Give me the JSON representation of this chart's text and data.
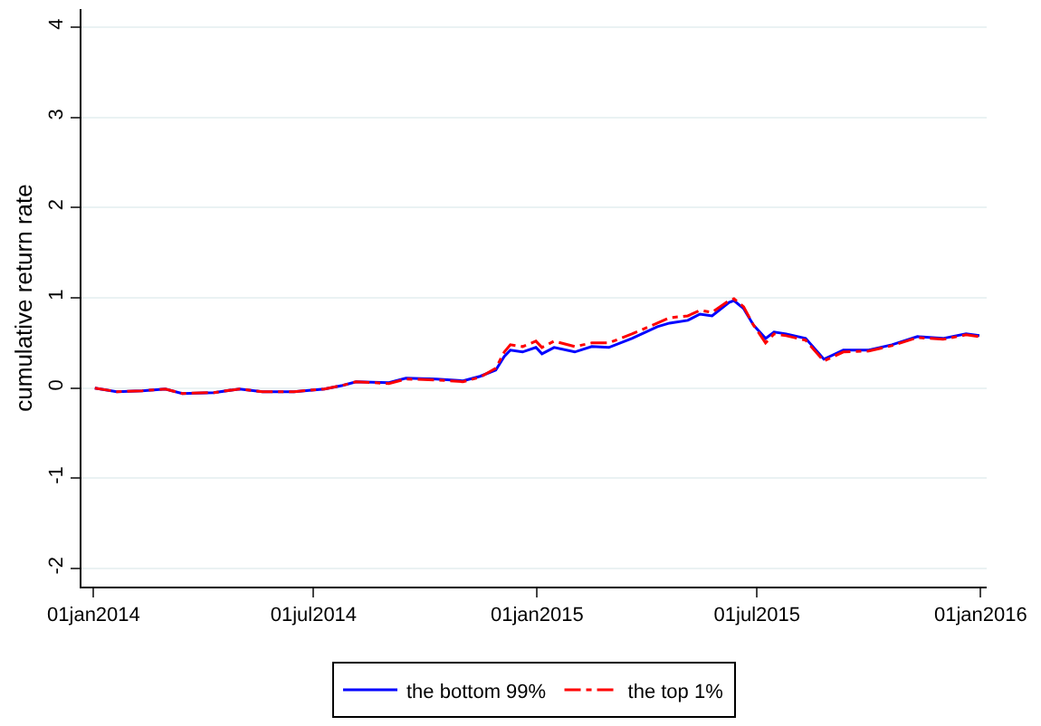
{
  "chart_data": {
    "type": "line",
    "ylabel": "cumulative return rate",
    "x": [
      "2014-01-02",
      "2014-01-20",
      "2014-02-10",
      "2014-03-01",
      "2014-03-15",
      "2014-04-10",
      "2014-05-01",
      "2014-05-20",
      "2014-06-15",
      "2014-07-10",
      "2014-07-25",
      "2014-08-05",
      "2014-09-01",
      "2014-09-15",
      "2014-10-10",
      "2014-11-01",
      "2014-11-15",
      "2014-11-28",
      "2014-12-05",
      "2014-12-10",
      "2014-12-20",
      "2014-12-31",
      "2015-01-05",
      "2015-01-15",
      "2015-02-01",
      "2015-02-15",
      "2015-03-01",
      "2015-03-20",
      "2015-04-10",
      "2015-04-20",
      "2015-05-05",
      "2015-05-15",
      "2015-05-25",
      "2015-06-08",
      "2015-06-12",
      "2015-06-20",
      "2015-06-28",
      "2015-07-08",
      "2015-07-15",
      "2015-07-25",
      "2015-08-10",
      "2015-08-25",
      "2015-09-10",
      "2015-10-01",
      "2015-10-20",
      "2015-11-10",
      "2015-12-01",
      "2015-12-20",
      "2015-12-31"
    ],
    "series": [
      {
        "name": "the bottom 99%",
        "color": "#0000ff",
        "line_style": "solid",
        "values": [
          0,
          -0.04,
          -0.03,
          -0.01,
          -0.06,
          -0.05,
          -0.01,
          -0.04,
          -0.04,
          -0.01,
          0.03,
          0.07,
          0.06,
          0.11,
          0.1,
          0.08,
          0.13,
          0.2,
          0.35,
          0.42,
          0.4,
          0.45,
          0.38,
          0.45,
          0.4,
          0.46,
          0.45,
          0.55,
          0.68,
          0.72,
          0.75,
          0.82,
          0.8,
          0.95,
          0.97,
          0.88,
          0.7,
          0.55,
          0.62,
          0.6,
          0.55,
          0.32,
          0.42,
          0.42,
          0.48,
          0.57,
          0.55,
          0.6,
          0.58
        ]
      },
      {
        "name": "the top 1%",
        "color": "#ff0000",
        "line_style": "dashed",
        "values": [
          0,
          -0.04,
          -0.03,
          -0.01,
          -0.06,
          -0.05,
          -0.01,
          -0.04,
          -0.04,
          -0.01,
          0.03,
          0.07,
          0.05,
          0.1,
          0.09,
          0.07,
          0.12,
          0.22,
          0.4,
          0.48,
          0.46,
          0.52,
          0.45,
          0.52,
          0.46,
          0.5,
          0.5,
          0.6,
          0.72,
          0.78,
          0.8,
          0.86,
          0.84,
          0.97,
          0.99,
          0.9,
          0.7,
          0.5,
          0.6,
          0.58,
          0.53,
          0.3,
          0.4,
          0.41,
          0.47,
          0.56,
          0.54,
          0.59,
          0.57
        ]
      }
    ],
    "xlim": [
      "2013-12-22",
      "2016-01-06"
    ],
    "xticks": [
      {
        "value": "2014-01-01",
        "label": "01jan2014"
      },
      {
        "value": "2014-07-01",
        "label": "01jul2014"
      },
      {
        "value": "2015-01-01",
        "label": "01jan2015"
      },
      {
        "value": "2015-07-01",
        "label": "01jul2015"
      },
      {
        "value": "2016-01-01",
        "label": "01jan2016"
      }
    ],
    "ylim": [
      -2.2,
      4.2
    ],
    "yticks": [
      -2,
      -1,
      0,
      1,
      2,
      3,
      4
    ],
    "grid": "y",
    "legend": "bottom"
  }
}
